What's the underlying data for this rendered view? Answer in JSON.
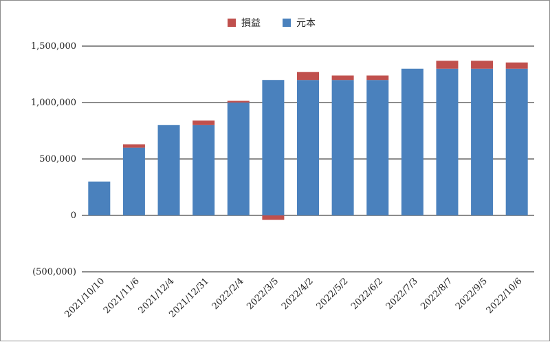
{
  "chart_data": {
    "type": "bar",
    "stacked": true,
    "title": "",
    "xlabel": "",
    "ylabel": "",
    "categories": [
      "2021/10/10",
      "2021/11/6",
      "2021/12/4",
      "2021/12/31",
      "2022/2/4",
      "2022/3/5",
      "2022/4/2",
      "2022/5/2",
      "2022/6/2",
      "2022/7/3",
      "2022/8/7",
      "2022/9/5",
      "2022/10/6"
    ],
    "series": [
      {
        "name": "元本",
        "color": "#4a81bd",
        "values": [
          300000,
          600000,
          800000,
          800000,
          1000000,
          1200000,
          1200000,
          1200000,
          1200000,
          1300000,
          1300000,
          1300000,
          1300000
        ]
      },
      {
        "name": "損益",
        "color": "#c0504d",
        "values": [
          0,
          30000,
          0,
          40000,
          15000,
          -40000,
          70000,
          40000,
          40000,
          0,
          70000,
          70000,
          55000
        ]
      }
    ],
    "legend_order": [
      "損益",
      "元本"
    ],
    "legend_position": "top",
    "ylim": [
      -500000,
      1500000
    ],
    "yticks": [
      {
        "value": 1500000,
        "label": "1,500,000"
      },
      {
        "value": 1000000,
        "label": "1,000,000"
      },
      {
        "value": 500000,
        "label": "500,000"
      },
      {
        "value": 0,
        "label": "0"
      },
      {
        "value": -500000,
        "label": "(500,000)"
      }
    ],
    "grid": true
  }
}
